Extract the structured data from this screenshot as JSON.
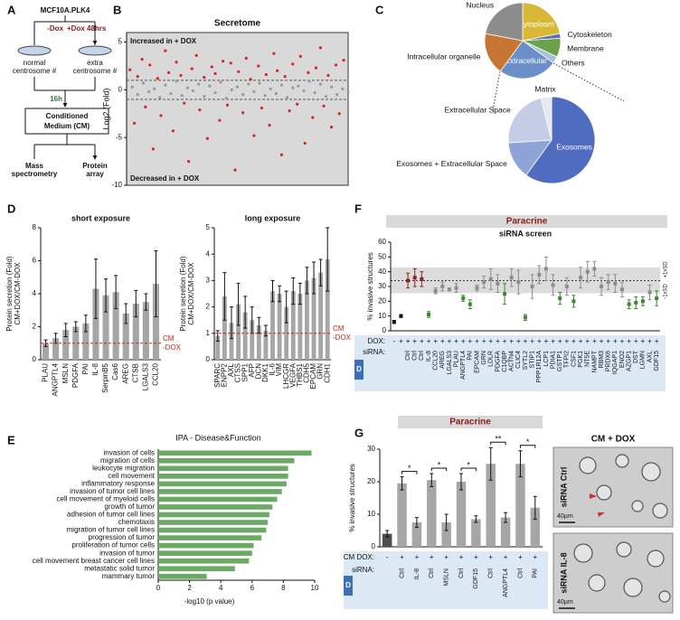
{
  "panel_labels": [
    "A",
    "B",
    "C",
    "D",
    "E",
    "F",
    "G"
  ],
  "diagram": {
    "cell_line": "MCF10A.PLK4",
    "minus_dox": "-Dox",
    "plus_dox": "+Dox 48hrs",
    "normal": [
      "normal",
      "centrosome #"
    ],
    "extra": [
      "extra",
      "centrosome #"
    ],
    "time": "16h",
    "medium": [
      "Conditioned",
      "Medium (CM)"
    ],
    "outputs": [
      [
        "Mass",
        "spectrometry"
      ],
      [
        "Protein",
        "array"
      ]
    ]
  },
  "chart_data": [
    {
      "type": "scatter",
      "title": "Secretome",
      "ylabel": "Log2 (Fold)",
      "annotations": [
        "Increased in + DOX",
        "Decreased in + DOX"
      ],
      "xlim": [
        0,
        200
      ],
      "ylim": [
        -10,
        6
      ],
      "yticks": [
        -10,
        -5,
        0,
        5
      ],
      "hlines": [
        -1,
        1
      ],
      "series": [
        {
          "color": "#9a9a9a",
          "x": [
            5,
            10,
            15,
            20,
            25,
            30,
            35,
            40,
            45,
            50,
            55,
            60,
            65,
            70,
            75,
            80,
            85,
            90,
            95,
            100,
            105,
            110,
            115,
            120,
            125,
            130,
            135,
            140,
            145,
            150,
            155,
            160,
            165,
            170,
            175,
            180,
            185,
            190,
            195,
            200
          ],
          "values": [
            0.3,
            -0.5,
            0.7,
            -0.2,
            0.1,
            -0.8,
            0.5,
            -0.4,
            0.9,
            -0.6,
            0.2,
            -0.1,
            0.6,
            -0.7,
            0.4,
            -0.3,
            0.8,
            -0.9,
            0.0,
            0.3,
            -0.5,
            0.6,
            -0.2,
            0.7,
            -0.6,
            0.1,
            -0.4,
            0.5,
            -0.8,
            0.2,
            0.4,
            -0.1,
            0.9,
            -0.3,
            0.6,
            -0.7,
            0.3,
            -0.5,
            0.1,
            -0.2
          ]
        },
        {
          "color": "#d62728",
          "x": [
            3,
            7,
            10,
            14,
            17,
            21,
            24,
            28,
            31,
            35,
            38,
            42,
            45,
            49,
            52,
            56,
            59,
            63,
            66,
            70,
            73,
            77,
            80,
            84,
            87,
            91,
            94,
            98,
            101,
            105,
            108,
            112,
            115,
            119,
            122,
            126,
            129,
            133,
            136,
            140,
            143,
            147,
            150,
            154,
            157,
            161,
            164,
            168,
            171,
            175,
            178,
            182,
            185,
            189,
            192,
            196
          ],
          "values": [
            2.1,
            -3.5,
            1.4,
            3.2,
            -1.8,
            2.6,
            -6.2,
            1.2,
            -2.7,
            4.1,
            1.8,
            -4.3,
            2.9,
            1.5,
            -1.4,
            -7.5,
            2.2,
            3.6,
            -2.1,
            1.3,
            -5.1,
            2.4,
            1.7,
            -3.2,
            3.0,
            -1.6,
            2.8,
            -8.4,
            1.9,
            -2.4,
            3.3,
            1.1,
            -4.8,
            2.5,
            -1.9,
            1.6,
            -3.7,
            3.8,
            2.0,
            -6.8,
            1.4,
            -2.2,
            2.7,
            -1.5,
            3.5,
            -5.6,
            1.8,
            -2.9,
            2.3,
            4.4,
            -1.7,
            1.5,
            -3.9,
            2.6,
            -2.5,
            3.1
          ]
        }
      ]
    },
    {
      "type": "pie",
      "categories": [
        "Cytoplasm",
        "Cytoskeleton",
        "Membrane",
        "Others",
        "Extracellular",
        "Intracellular organelle",
        "Nucleus"
      ],
      "values": [
        22,
        2,
        8,
        3,
        25,
        18,
        22
      ],
      "colors": [
        "#d9b836",
        "#5b6fb3",
        "#6aa14a",
        "#a8bfd8",
        "#6b8fc9",
        "#c87533",
        "#8c8c8c"
      ]
    },
    {
      "type": "pie",
      "categories": [
        "Exosomes",
        "Exosomes + Extracellular Space",
        "Extracellular Space",
        "Matrix"
      ],
      "values": [
        60,
        14,
        22,
        4
      ],
      "colors": [
        "#4f6cc0",
        "#8ea3d8",
        "#c5cce6",
        "#e6e8f2"
      ]
    },
    {
      "type": "bar",
      "title": "short exposure",
      "ylabel": [
        "Protein secretion (Fold)",
        "CM+DOX/CM-DOX"
      ],
      "categories": [
        "PLAU",
        "ANGPTL4",
        "MSLN",
        "PDGFA",
        "PAI",
        "IL-8",
        "SerpinB5",
        "Cas6",
        "AREG",
        "CTSB",
        "LGALS3",
        "CCL20"
      ],
      "values": [
        1,
        1.3,
        1.8,
        2,
        2.2,
        4.3,
        3.9,
        4.1,
        2.8,
        3.4,
        3.5,
        4.6
      ],
      "errors": [
        0.2,
        0.3,
        0.4,
        0.3,
        0.5,
        1.8,
        1.0,
        1.0,
        0.6,
        0.8,
        0.5,
        2.0
      ],
      "color": "#a6a6a6",
      "ylim": [
        0,
        8
      ],
      "yticks": [
        0,
        2,
        4,
        6,
        8
      ],
      "hline": 1,
      "hline_labels": [
        "CM",
        "-DOX"
      ]
    },
    {
      "type": "bar",
      "title": "long exposure",
      "ylabel": [
        "Protein secretion (Fold)",
        "CM+DOX/CM-DOX"
      ],
      "categories": [
        "SPARC",
        "ENPP2",
        "AXL",
        "CTSS",
        "SPP1",
        "AFP",
        "DCN",
        "DKK1",
        "IL-6",
        "VIM",
        "LHCGR",
        "VEGFA",
        "THBS1",
        "CDH5",
        "EPCAM",
        "GRN",
        "CDH1"
      ],
      "values": [
        0.9,
        2.4,
        1.4,
        2.1,
        1.8,
        1.5,
        1.3,
        1.1,
        2.6,
        2.5,
        2.0,
        2.6,
        2.5,
        3.0,
        3.1,
        3.3,
        3.8
      ],
      "errors": [
        0.2,
        0.9,
        0.6,
        0.8,
        0.6,
        0.5,
        0.3,
        0.2,
        0.4,
        0.3,
        0.6,
        0.5,
        0.4,
        0.5,
        0.6,
        0.5,
        1.2
      ],
      "color": "#a6a6a6",
      "ylim": [
        0,
        5
      ],
      "yticks": [
        0,
        1,
        2,
        3,
        4,
        5
      ],
      "hline": 1,
      "hline_labels": [
        "CM",
        "-DOX"
      ]
    },
    {
      "type": "barh",
      "title": "IPA - Disease&Function",
      "xlabel": "-log10  (p value)",
      "categories": [
        "invasion of cells",
        "migration of cells",
        "leukocyte migration",
        "cell movement",
        "inflammatory response",
        "invasion of tumor cell lines",
        "cell movement of myeloid cells",
        "growth of tumor",
        "adhesion of tumor cell lines",
        "chemotaxis",
        "migration of tumor cell lines",
        "progression of tumor",
        "proliferation of tumor cells",
        "invasion of tumor",
        "cell movement breast cancer cell lines",
        "metastatic solid tumor",
        "mammary tumor"
      ],
      "values": [
        9.8,
        8.7,
        8.3,
        8.3,
        8.2,
        7.9,
        7.6,
        7.3,
        7.1,
        7.0,
        6.9,
        6.6,
        6.1,
        6.0,
        5.8,
        4.9,
        3.1
      ],
      "color": "#6aaa64",
      "xlim": [
        0,
        10
      ],
      "xticks": [
        0,
        2,
        4,
        6,
        8,
        10
      ]
    },
    {
      "type": "dotplot",
      "header": "Paracrine",
      "title": "siRNA screen",
      "ylabel": "% invasive structures",
      "row_labels": [
        "DOX:",
        "siRNA:"
      ],
      "table_tag": "D",
      "dox": [
        "-",
        "+",
        "+",
        "+",
        "+",
        "+",
        "+",
        "+",
        "+",
        "+",
        "+",
        "+",
        "+",
        "+",
        "+",
        "+",
        "+",
        "+",
        "+",
        "+",
        "+",
        "+",
        "+",
        "+",
        "+",
        "+",
        "+",
        "+",
        "+",
        "+",
        "+",
        "+",
        "+",
        "+",
        "+",
        "+",
        "+",
        "+",
        "+"
      ],
      "categories": [
        null,
        null,
        "Ctrl",
        "Ctrl",
        "Ctrl",
        "IL-8",
        "CCL20",
        "AREG",
        "LGALS3",
        "PLAU",
        "ANGPTL4",
        "PAI",
        "EPCAM",
        "GRN",
        "LDLR",
        "PDGFA",
        "C1QBP",
        "ACTN4",
        "CLIC4",
        "SYTL2",
        "STIP1",
        "PPP1R12A",
        "LCP1",
        "PDIA1",
        "GSTP1",
        "TFPI2",
        "CSF1",
        "PGK1",
        "NT5E",
        "NAMPT",
        "RBM3",
        "PRDX6",
        "IQGAP1",
        "ENO2",
        "AZGP1",
        "DST",
        "LGMN",
        "AXL",
        "GDF15"
      ],
      "values": [
        6,
        10,
        34,
        36,
        35,
        11,
        27,
        30,
        28,
        29,
        22,
        18,
        29,
        33,
        35,
        32,
        25,
        36,
        33,
        9,
        30,
        38,
        42,
        31,
        22,
        30,
        20,
        36,
        40,
        42,
        30,
        33,
        32,
        28,
        18,
        19,
        20,
        26,
        22
      ],
      "errors": [
        1,
        1,
        5,
        6,
        5,
        2,
        2,
        3,
        1,
        3,
        2,
        3,
        2,
        4,
        7,
        6,
        7,
        6,
        8,
        2,
        8,
        6,
        8,
        7,
        4,
        6,
        4,
        7,
        7,
        5,
        6,
        5,
        6,
        5,
        3,
        4,
        3,
        5,
        5
      ],
      "colors": [
        "#111111",
        "#111111",
        "#8b2323",
        "#8b2323",
        "#8b2323",
        "#3a8a2e",
        "#8c8c8c",
        "#8c8c8c",
        "#8c8c8c",
        "#8c8c8c",
        "#3a8a2e",
        "#3a8a2e",
        "#8c8c8c",
        "#8c8c8c",
        "#8c8c8c",
        "#8c8c8c",
        "#3a8a2e",
        "#8c8c8c",
        "#8c8c8c",
        "#3a8a2e",
        "#8c8c8c",
        "#8c8c8c",
        "#8c8c8c",
        "#8c8c8c",
        "#3a8a2e",
        "#8c8c8c",
        "#3a8a2e",
        "#8c8c8c",
        "#8c8c8c",
        "#8c8c8c",
        "#8c8c8c",
        "#8c8c8c",
        "#8c8c8c",
        "#8c8c8c",
        "#3a8a2e",
        "#3a8a2e",
        "#3a8a2e",
        "#8c8c8c",
        "#3a8a2e"
      ],
      "ylim": [
        0,
        60
      ],
      "yticks": [
        0,
        10,
        20,
        30,
        40,
        50,
        60
      ],
      "mean": 34,
      "sd_band": [
        25.5,
        43
      ],
      "sd_labels": [
        "-1xSD",
        "+1xSD"
      ]
    },
    {
      "type": "bar",
      "header": "Paracrine",
      "ylabel": [
        "% invasive structures"
      ],
      "row_labels": [
        "CM DOX:",
        "siRNA:"
      ],
      "table_tag": "D",
      "dox": [
        "-",
        "+",
        "+",
        "+",
        "+",
        "+",
        "+",
        "+",
        "+",
        "+",
        "+"
      ],
      "categories": [
        null,
        "Ctrl",
        "IL-8",
        "Ctrl",
        "MSLN",
        "Ctrl",
        "GDF15",
        "Ctrl",
        "ANGPTL4",
        "Ctrl",
        "PAI"
      ],
      "values": [
        4,
        19.5,
        7.5,
        20.5,
        7.5,
        20,
        8.5,
        25.5,
        9,
        25.5,
        12
      ],
      "errors": [
        1,
        2,
        1.5,
        2,
        2.5,
        2.5,
        1,
        5,
        1.5,
        4,
        3.5
      ],
      "colors": [
        "#4d4d4d",
        "#a6a6a6",
        "#a6a6a6",
        "#a6a6a6",
        "#a6a6a6",
        "#a6a6a6",
        "#a6a6a6",
        "#a6a6a6",
        "#a6a6a6",
        "#a6a6a6",
        "#a6a6a6"
      ],
      "ylim": [
        0,
        30
      ],
      "yticks": [
        0,
        10,
        20,
        30
      ],
      "significance": [
        "*",
        "*",
        "*",
        "**",
        "*"
      ]
    }
  ],
  "images": {
    "title": "CM + DOX",
    "rows": [
      "siRNA Ctrl",
      "siRNA IL-8"
    ],
    "scale": "40µm"
  }
}
